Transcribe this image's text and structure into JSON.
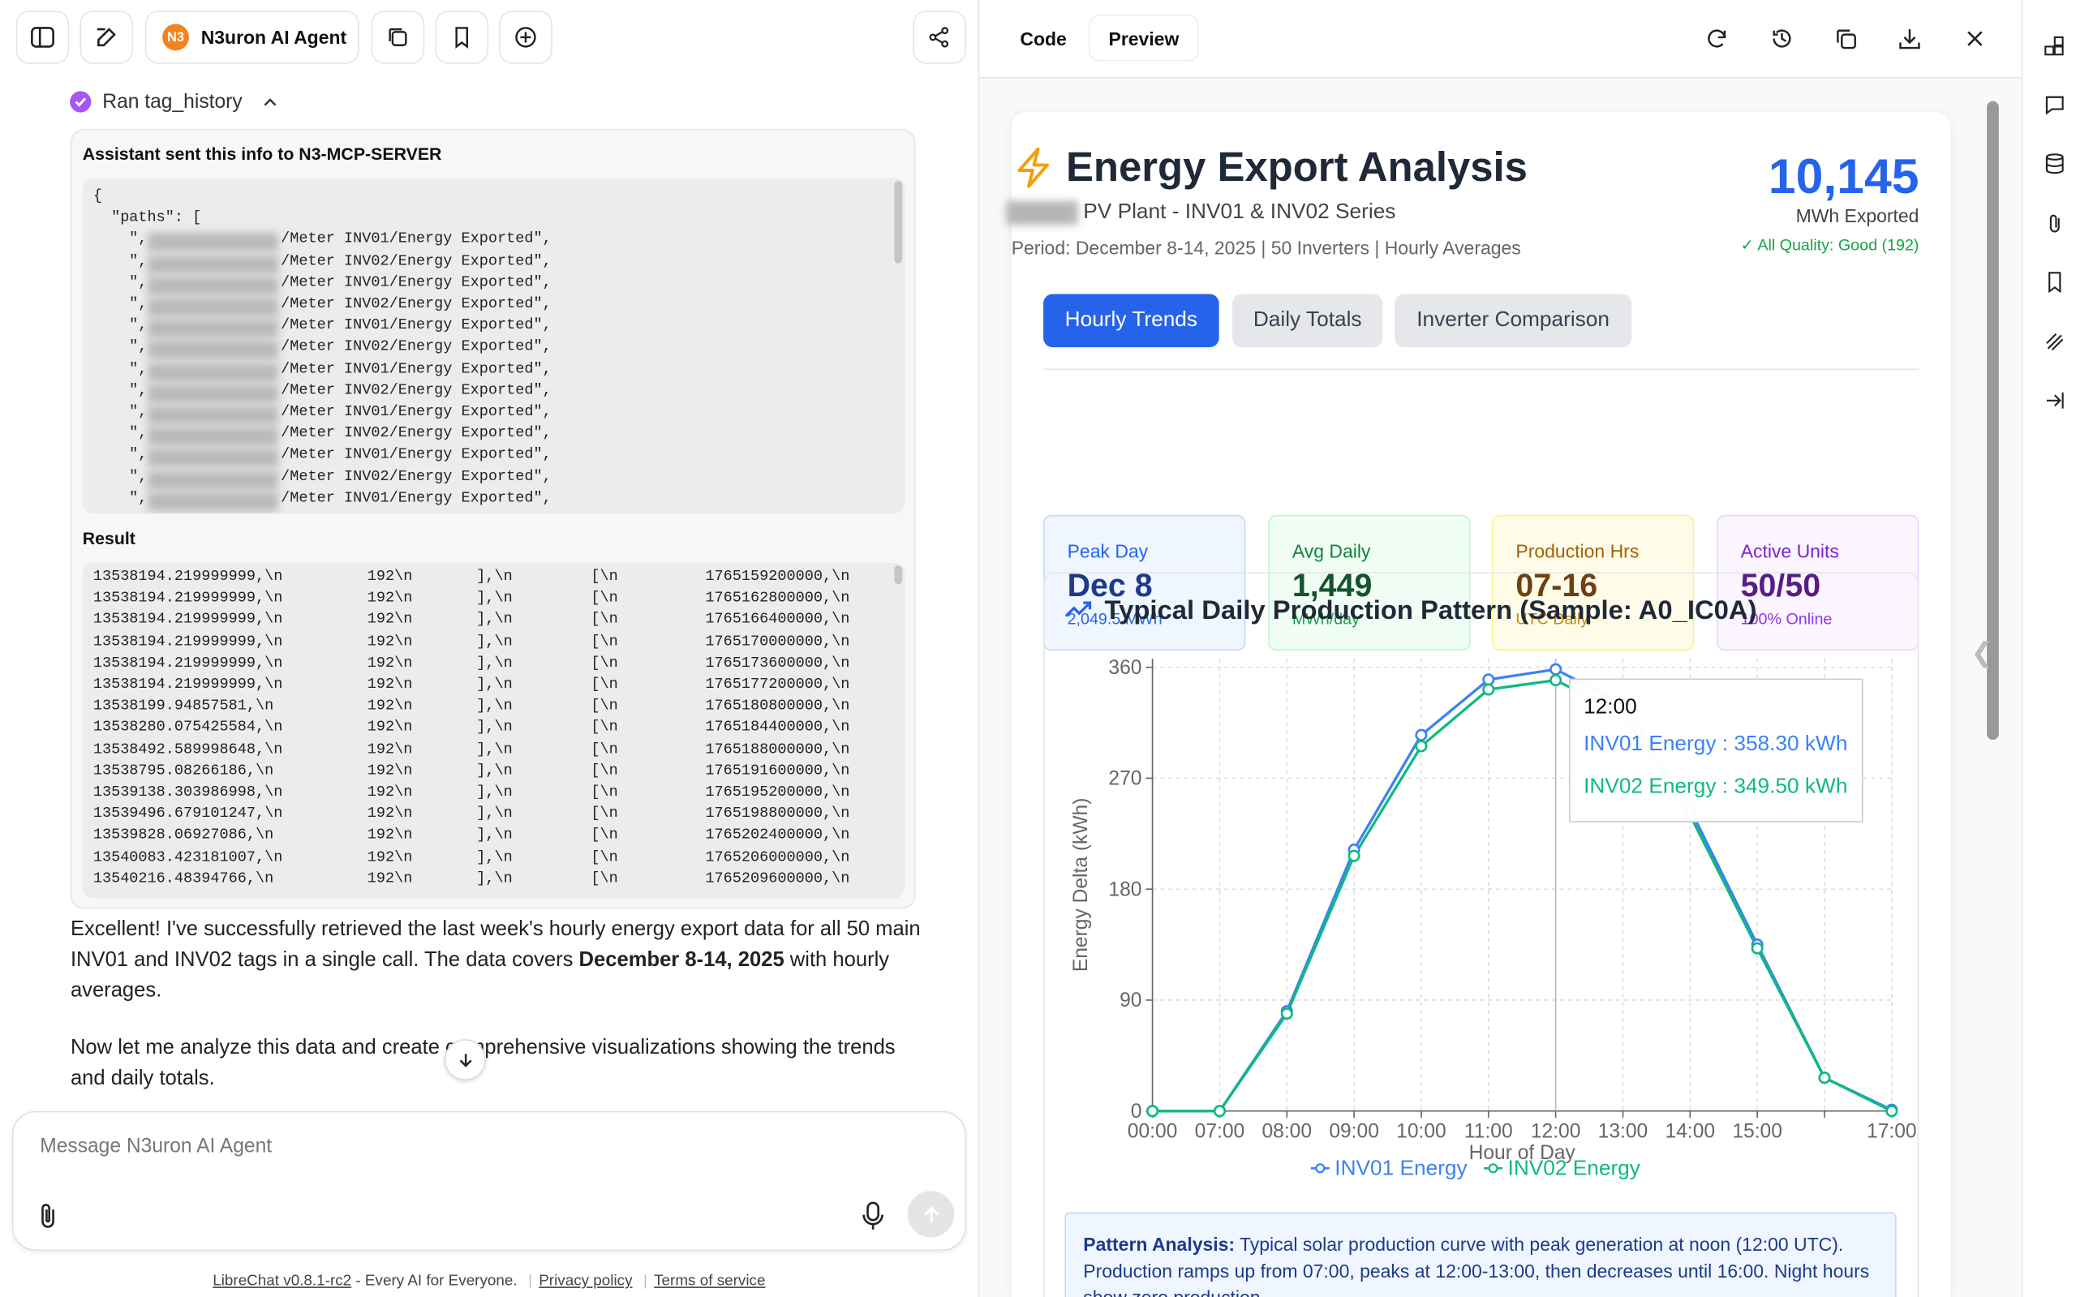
{
  "toolbar": {
    "agent_badge": "N3",
    "agent_name": "N3uron AI Agent"
  },
  "chat": {
    "tool_status": "Ran tag_history",
    "request": {
      "title": "Assistant sent this info to N3-MCP-SERVER",
      "head_lines": [
        "{",
        "  \"paths\": ["
      ],
      "path_prefix": "\",",
      "path_lines": [
        "/Meter INV01/Energy Exported\",",
        "/Meter INV02/Energy Exported\",",
        "/Meter INV01/Energy Exported\",",
        "/Meter INV02/Energy Exported\",",
        "/Meter INV01/Energy Exported\",",
        "/Meter INV02/Energy Exported\",",
        "/Meter INV01/Energy Exported\",",
        "/Meter INV02/Energy Exported\",",
        "/Meter INV01/Energy Exported\",",
        "/Meter INV02/Energy Exported\",",
        "/Meter INV01/Energy Exported\",",
        "/Meter INV02/Energy Exported\",",
        "/Meter INV01/Energy Exported\","
      ]
    },
    "result": {
      "title": "Result",
      "rows": [
        [
          "13538194.219999999,\\n",
          "192\\n",
          "],\\n",
          "[\\n",
          "1765159200000,\\n"
        ],
        [
          "13538194.219999999,\\n",
          "192\\n",
          "],\\n",
          "[\\n",
          "1765162800000,\\n"
        ],
        [
          "13538194.219999999,\\n",
          "192\\n",
          "],\\n",
          "[\\n",
          "1765166400000,\\n"
        ],
        [
          "13538194.219999999,\\n",
          "192\\n",
          "],\\n",
          "[\\n",
          "1765170000000,\\n"
        ],
        [
          "13538194.219999999,\\n",
          "192\\n",
          "],\\n",
          "[\\n",
          "1765173600000,\\n"
        ],
        [
          "13538194.219999999,\\n",
          "192\\n",
          "],\\n",
          "[\\n",
          "1765177200000,\\n"
        ],
        [
          "13538199.94857581,\\n",
          "192\\n",
          "],\\n",
          "[\\n",
          "1765180800000,\\n"
        ],
        [
          "13538280.075425584,\\n",
          "192\\n",
          "],\\n",
          "[\\n",
          "1765184400000,\\n"
        ],
        [
          "13538492.589998648,\\n",
          "192\\n",
          "],\\n",
          "[\\n",
          "1765188000000,\\n"
        ],
        [
          "13538795.08266186,\\n",
          "192\\n",
          "],\\n",
          "[\\n",
          "1765191600000,\\n"
        ],
        [
          "13539138.303986998,\\n",
          "192\\n",
          "],\\n",
          "[\\n",
          "1765195200000,\\n"
        ],
        [
          "13539496.679101247,\\n",
          "192\\n",
          "],\\n",
          "[\\n",
          "1765198800000,\\n"
        ],
        [
          "13539828.06927086,\\n",
          "192\\n",
          "],\\n",
          "[\\n",
          "1765202400000,\\n"
        ],
        [
          "13540083.423181007,\\n",
          "192\\n",
          "],\\n",
          "[\\n",
          "1765206000000,\\n"
        ],
        [
          "13540216.48394766,\\n",
          "192\\n",
          "],\\n",
          "[\\n",
          "1765209600000,\\n"
        ]
      ]
    },
    "message": {
      "p1_start": "Excellent! I've successfully retrieved the last week's hourly energy export data for all 50 main INV01 and INV02 tags in a single call. The data covers ",
      "p1_bold": "December 8-14, 2025",
      "p1_end": " with hourly averages.",
      "p2": "Now let me analyze this data and create comprehensive visualizations showing the trends and daily totals."
    },
    "input_placeholder": "Message N3uron AI Agent",
    "footer": {
      "version": "LibreChat v0.8.1-rc2",
      "tagline": " - Every AI for Everyone.",
      "privacy": "Privacy policy",
      "terms": "Terms of service"
    }
  },
  "artifact": {
    "tabs": [
      "Code",
      "Preview"
    ],
    "title": "Energy Export Analysis",
    "subtitle": "PV Plant - INV01 & INV02 Series",
    "period": "Period: December 8-14, 2025 | 50 Inverters | Hourly Averages",
    "total": "10,145",
    "total_unit": "MWh Exported",
    "quality": "✓ All Quality: Good (192)",
    "view_tabs": [
      "Hourly Trends",
      "Daily Totals",
      "Inverter Comparison"
    ],
    "stats": [
      {
        "label": "Peak Day",
        "value": "Dec 8",
        "sub": "2,049.5 MWh"
      },
      {
        "label": "Avg Daily",
        "value": "1,449",
        "sub": "MWh/day"
      },
      {
        "label": "Production Hrs",
        "value": "07-16",
        "sub": "UTC Daily"
      },
      {
        "label": "Active Units",
        "value": "50/50",
        "sub": "100% Online"
      }
    ],
    "chart": {
      "type": "line",
      "title": "Typical Daily Production Pattern (Sample: A0_IC0A)",
      "y_label": "Energy Delta (kWh)",
      "x_label": "Hour of Day",
      "categories": [
        "00:00",
        "07:00",
        "08:00",
        "09:00",
        "10:00",
        "11:00",
        "12:00",
        "13:00",
        "14:00",
        "15:00",
        null,
        "17:00"
      ],
      "series": [
        {
          "name": "INV01 Energy",
          "color": "#3b82f6",
          "values": [
            0,
            0,
            81,
            212,
            305,
            350,
            358.3,
            330,
            245,
            135,
            27,
            1
          ]
        },
        {
          "name": "INV02 Energy",
          "color": "#10b981",
          "values": [
            0,
            0,
            79,
            207,
            296,
            342,
            349.5,
            322,
            240,
            132,
            27,
            0
          ]
        }
      ],
      "ylim": [
        0,
        367
      ],
      "yticks": [
        0,
        90,
        180,
        270,
        360
      ],
      "grid": true,
      "tooltip": {
        "lines": [
          "INV01 Energy : 358.30 kWh",
          "INV02 Energy : 349.50 kWh"
        ]
      }
    },
    "analysis": {
      "label": "Pattern Analysis:",
      "text": " Typical solar production curve with peak generation at noon (12:00 UTC). Production ramps up from 07:00, peaks at 12:00-13:00, then decreases until 16:00. Night hours show zero production."
    }
  }
}
